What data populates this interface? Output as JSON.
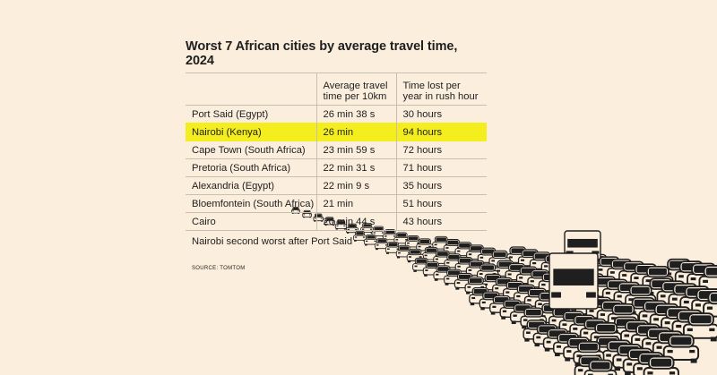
{
  "chart_data": {
    "type": "table",
    "title": "Worst 7 African cities by average travel time, 2024",
    "columns": [
      "",
      "Average travel time per 10km",
      "Time lost per year in rush hour"
    ],
    "header_lines": [
      [
        "",
        ""
      ],
      [
        "Average travel",
        "time per 10km"
      ],
      [
        "Time lost per",
        "year in rush hour"
      ]
    ],
    "rows": [
      {
        "city": "Port Said (Egypt)",
        "travel_time": "26 min 38 s",
        "time_lost": "30 hours",
        "highlight": false
      },
      {
        "city": "Nairobi (Kenya)",
        "travel_time": "26 min",
        "time_lost": "94 hours",
        "highlight": true
      },
      {
        "city": "Cape Town (South Africa)",
        "travel_time": "23 min 59 s",
        "time_lost": "72 hours",
        "highlight": false
      },
      {
        "city": "Pretoria (South Africa)",
        "travel_time": "22 min 31 s",
        "time_lost": "71 hours",
        "highlight": false
      },
      {
        "city": "Alexandria (Egypt)",
        "travel_time": "22 min 9 s",
        "time_lost": "35 hours",
        "highlight": false
      },
      {
        "city": "Bloemfontein (South Africa)",
        "travel_time": "21 min",
        "time_lost": "51 hours",
        "highlight": false
      },
      {
        "city": "Cairo",
        "travel_time": "20 min 44 s",
        "time_lost": "43 hours",
        "highlight": false
      }
    ],
    "note": "Nairobi second worst after Port Said",
    "source": "SOURCE: TOMTOM"
  },
  "colors": {
    "background": "#fbeedd",
    "highlight": "#f4ee1f",
    "ink": "#1f1f1f",
    "rule": "#c9bfb1"
  },
  "illustration": "traffic-jam-illustration"
}
